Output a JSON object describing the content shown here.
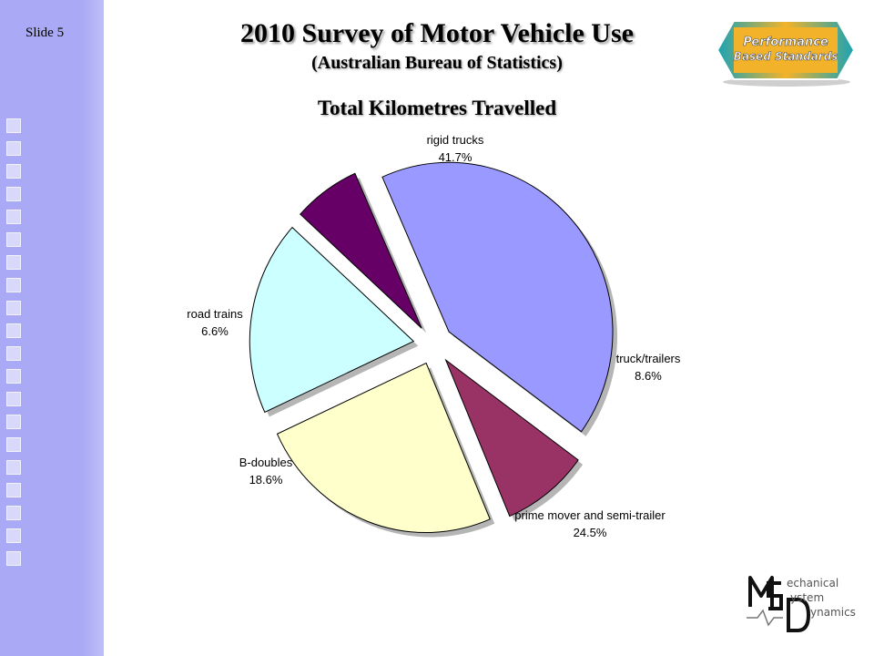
{
  "slide": {
    "number_label": "Slide 5"
  },
  "header": {
    "title": "2010 Survey of Motor Vehicle Use",
    "subtitle": "(Australian Bureau of Statistics)"
  },
  "logos": {
    "performance_line1": "Performance",
    "performance_line2": "Based Standards",
    "msd_text": [
      "echanical",
      "ystem",
      "ynamics"
    ]
  },
  "colors": {
    "sidebar": "#a9a9f5",
    "rigid_trucks": "#9999ff",
    "truck_trailers": "#993366",
    "prime_mover": "#ffffcc",
    "b_doubles": "#ccffff",
    "road_trains": "#660066"
  },
  "chart_data": {
    "type": "pie",
    "title": "Total Kilometres Travelled",
    "exploded": true,
    "slices": [
      {
        "name": "rigid trucks",
        "value": 41.7,
        "value_label": "41.7%",
        "color": "#9999ff"
      },
      {
        "name": "truck/trailers",
        "value": 8.6,
        "value_label": "8.6%",
        "color": "#993366"
      },
      {
        "name": "prime mover and semi-trailer",
        "value": 24.5,
        "value_label": "24.5%",
        "color": "#ffffcc"
      },
      {
        "name": "B-doubles",
        "value": 18.6,
        "value_label": "18.6%",
        "color": "#ccffff"
      },
      {
        "name": "road trains",
        "value": 6.6,
        "value_label": "6.6%",
        "color": "#660066"
      }
    ]
  }
}
